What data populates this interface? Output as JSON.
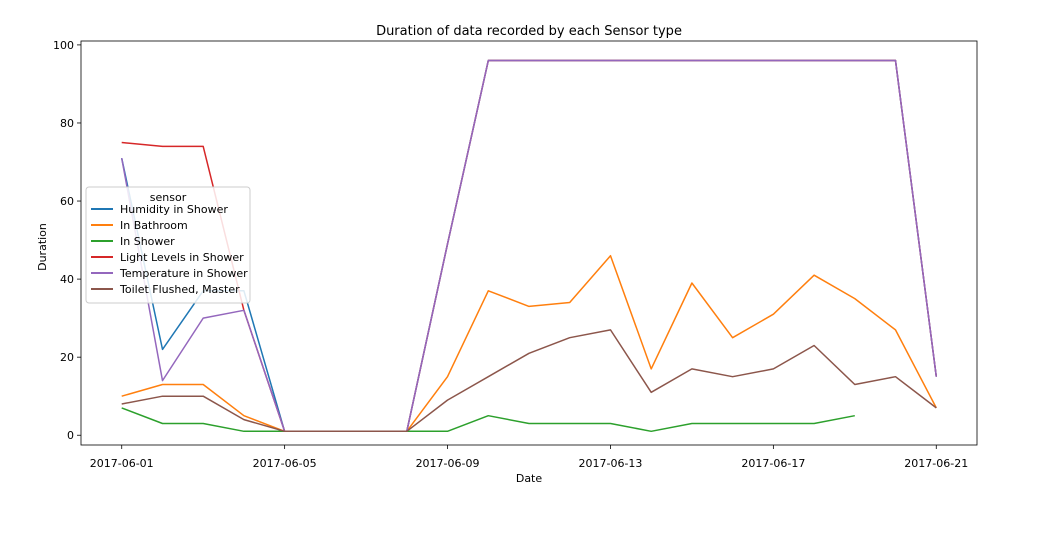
{
  "chart_data": {
    "type": "line",
    "title": "Duration of data recorded by each Sensor type",
    "xlabel": "Date",
    "ylabel": "Duration",
    "x": [
      "2017-06-01",
      "2017-06-02",
      "2017-06-03",
      "2017-06-04",
      "2017-06-05",
      "2017-06-06",
      "2017-06-07",
      "2017-06-08",
      "2017-06-09",
      "2017-06-10",
      "2017-06-11",
      "2017-06-12",
      "2017-06-13",
      "2017-06-14",
      "2017-06-15",
      "2017-06-16",
      "2017-06-17",
      "2017-06-18",
      "2017-06-19",
      "2017-06-20",
      "2017-06-21"
    ],
    "x_ticks": [
      "2017-06-01",
      "2017-06-05",
      "2017-06-09",
      "2017-06-13",
      "2017-06-17",
      "2017-06-21"
    ],
    "y_ticks": [
      0,
      20,
      40,
      60,
      80,
      100
    ],
    "xlim": [
      "2017-05-31",
      "2017-06-22"
    ],
    "ylim": [
      -2.5,
      101
    ],
    "grid": false,
    "legend_title": "sensor",
    "legend_placement": "center-left",
    "series": [
      {
        "name": "Humidity in Shower",
        "color": "#1f77b4",
        "values": [
          71,
          22,
          37,
          37,
          1,
          1,
          1,
          1,
          49,
          96,
          96,
          96,
          96,
          96,
          96,
          96,
          96,
          96,
          96,
          96,
          15
        ]
      },
      {
        "name": "In Bathroom",
        "color": "#ff7f0e",
        "values": [
          10,
          13,
          13,
          5,
          1,
          1,
          1,
          1,
          15,
          37,
          33,
          34,
          46,
          17,
          39,
          25,
          31,
          41,
          35,
          27,
          7
        ]
      },
      {
        "name": "In Shower",
        "color": "#2ca02c",
        "values": [
          7,
          3,
          3,
          1,
          1,
          1,
          1,
          1,
          1,
          5,
          3,
          3,
          3,
          1,
          3,
          3,
          3,
          3,
          5,
          null,
          null
        ]
      },
      {
        "name": "Light Levels in Shower",
        "color": "#d62728",
        "values": [
          75,
          74,
          74,
          32,
          1,
          1,
          1,
          1,
          49,
          96,
          96,
          96,
          96,
          96,
          96,
          96,
          96,
          96,
          96,
          96,
          15
        ]
      },
      {
        "name": "Temperature in Shower",
        "color": "#9467bd",
        "values": [
          71,
          14,
          30,
          32,
          1,
          1,
          1,
          1,
          49,
          96,
          96,
          96,
          96,
          96,
          96,
          96,
          96,
          96,
          96,
          96,
          15
        ]
      },
      {
        "name": "Toilet Flushed, Master",
        "color": "#8c564b",
        "values": [
          8,
          10,
          10,
          4,
          1,
          1,
          1,
          1,
          9,
          15,
          21,
          25,
          27,
          11,
          17,
          15,
          17,
          23,
          13,
          15,
          7
        ]
      }
    ]
  }
}
